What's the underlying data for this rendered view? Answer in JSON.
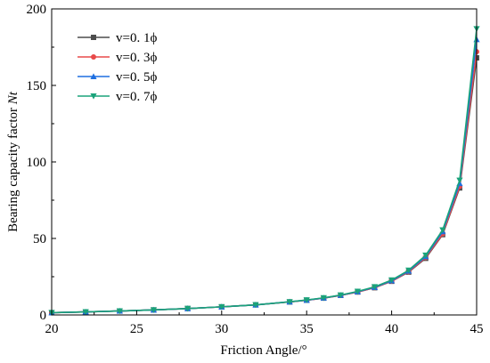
{
  "chart_data": {
    "type": "line",
    "title": "",
    "xlabel": "Friction Angle/°",
    "ylabel_main": "Bearing capacity factor ",
    "ylabel_italic": "Nt",
    "xlim": [
      20,
      45
    ],
    "ylim": [
      0,
      200
    ],
    "xticks": [
      20,
      25,
      30,
      35,
      40,
      45
    ],
    "yticks": [
      0,
      50,
      100,
      150,
      200
    ],
    "grid": false,
    "legend_position": "top-left",
    "x": [
      20,
      22,
      24,
      26,
      28,
      30,
      32,
      34,
      35,
      36,
      37,
      38,
      39,
      40,
      41,
      42,
      43,
      44,
      45
    ],
    "series": [
      {
        "name": "v=0. 1ϕ",
        "color": "#4d4d4d",
        "marker": "square",
        "values": [
          1.5,
          2.0,
          2.6,
          3.3,
          4.2,
          5.3,
          6.6,
          8.5,
          9.6,
          11.0,
          12.8,
          15.0,
          17.8,
          22.0,
          28.0,
          37.0,
          52.5,
          83.0,
          168.0
        ]
      },
      {
        "name": "v=0. 3ϕ",
        "color": "#e84a4a",
        "marker": "circle",
        "values": [
          1.5,
          2.0,
          2.6,
          3.3,
          4.2,
          5.3,
          6.6,
          8.5,
          9.6,
          11.0,
          12.8,
          15.0,
          17.9,
          22.1,
          28.2,
          37.5,
          53.0,
          84.0,
          172.0
        ]
      },
      {
        "name": "v=0. 5ϕ",
        "color": "#1f6fe0",
        "marker": "triangle-up",
        "values": [
          1.5,
          2.0,
          2.6,
          3.3,
          4.2,
          5.3,
          6.6,
          8.6,
          9.7,
          11.1,
          12.9,
          15.2,
          18.1,
          22.4,
          28.7,
          38.2,
          54.5,
          86.0,
          180.0
        ]
      },
      {
        "name": "v=0. 7ϕ",
        "color": "#1aa37a",
        "marker": "triangle-down",
        "values": [
          1.5,
          2.0,
          2.6,
          3.3,
          4.2,
          5.3,
          6.6,
          8.6,
          9.8,
          11.2,
          13.0,
          15.4,
          18.4,
          22.8,
          29.2,
          39.0,
          55.5,
          88.0,
          187.0
        ]
      }
    ]
  }
}
